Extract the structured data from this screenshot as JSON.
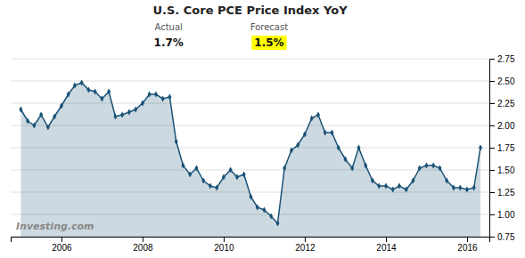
{
  "chart_data": {
    "type": "line",
    "title": "U.S. Core PCE Price Index YoY",
    "annotations": [
      "Actual",
      "1.7%",
      "Forecast",
      "1.5%",
      "Investing.com"
    ],
    "color": "#1a5276",
    "marker": "diamond",
    "grid": true,
    "xlim": [
      2004.75,
      2016.55
    ],
    "xticks": [
      2006,
      2008,
      2010,
      2012,
      2014,
      2016
    ],
    "ylim": [
      0.75,
      2.75
    ],
    "yticks": [
      0.75,
      {
        "value": 1.0,
        "label": "1.00"
      },
      1.25,
      {
        "value": 1.5,
        "label": "1.50"
      },
      1.75,
      {
        "value": 2.0,
        "label": "2.00"
      },
      2.25,
      {
        "value": 2.5,
        "label": "2.50"
      },
      2.75
    ],
    "x": [
      2005.0,
      2005.17,
      2005.33,
      2005.5,
      2005.67,
      2005.83,
      2006.0,
      2006.17,
      2006.33,
      2006.5,
      2006.67,
      2006.83,
      2007.0,
      2007.17,
      2007.33,
      2007.5,
      2007.67,
      2007.83,
      2008.0,
      2008.17,
      2008.33,
      2008.5,
      2008.67,
      2008.83,
      2009.0,
      2009.17,
      2009.33,
      2009.5,
      2009.67,
      2009.83,
      2010.0,
      2010.17,
      2010.33,
      2010.5,
      2010.67,
      2010.83,
      2011.0,
      2011.17,
      2011.33,
      2011.5,
      2011.67,
      2011.83,
      2012.0,
      2012.17,
      2012.33,
      2012.5,
      2012.67,
      2012.83,
      2013.0,
      2013.17,
      2013.33,
      2013.5,
      2013.67,
      2013.83,
      2014.0,
      2014.17,
      2014.33,
      2014.5,
      2014.67,
      2014.83,
      2015.0,
      2015.17,
      2015.33,
      2015.5,
      2015.67,
      2015.83,
      2016.0,
      2016.17,
      2016.33
    ],
    "values": [
      2.18,
      2.05,
      2.0,
      2.12,
      1.98,
      2.1,
      2.22,
      2.35,
      2.45,
      2.48,
      2.4,
      2.38,
      2.3,
      2.38,
      2.1,
      2.12,
      2.15,
      2.18,
      2.25,
      2.35,
      2.35,
      2.3,
      2.32,
      1.82,
      1.55,
      1.45,
      1.52,
      1.38,
      1.32,
      1.3,
      1.42,
      1.5,
      1.42,
      1.45,
      1.2,
      1.08,
      1.05,
      0.98,
      0.9,
      1.52,
      1.72,
      1.78,
      1.9,
      2.08,
      2.12,
      1.92,
      1.92,
      1.75,
      1.62,
      1.52,
      1.75,
      1.55,
      1.38,
      1.32,
      1.32,
      1.28,
      1.32,
      1.28,
      1.38,
      1.52,
      1.55,
      1.55,
      1.52,
      1.38,
      1.3,
      1.3,
      1.28,
      1.3,
      1.75
    ]
  }
}
